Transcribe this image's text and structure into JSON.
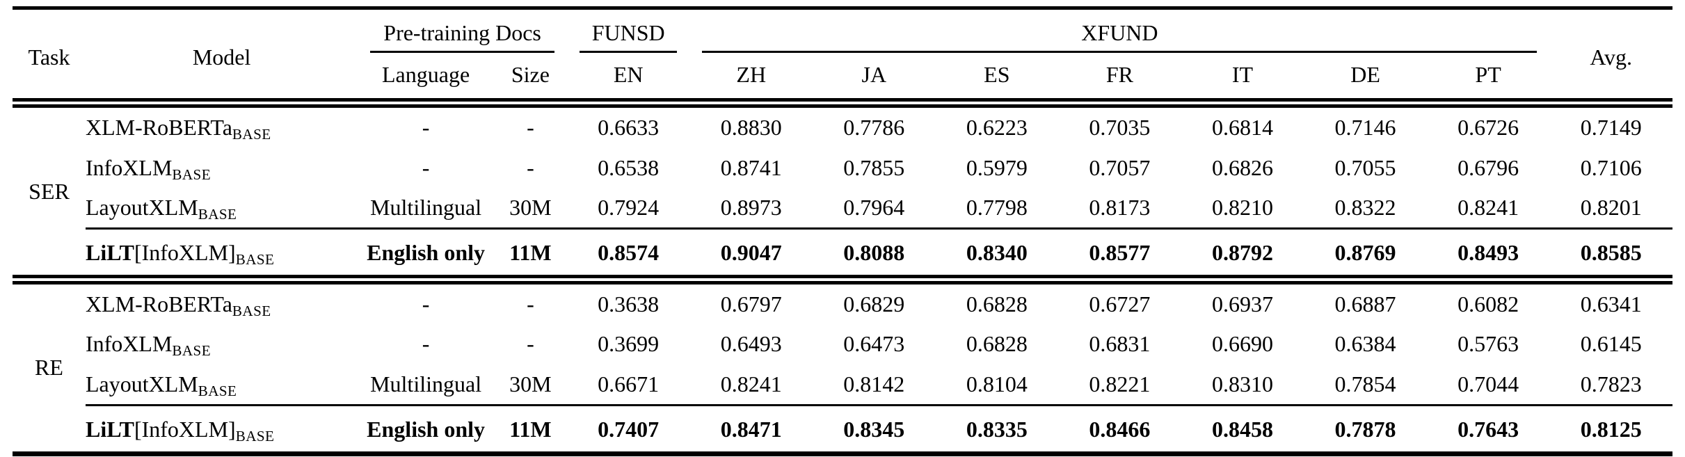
{
  "colors": {
    "text": "#000000",
    "background": "#ffffff"
  },
  "header": {
    "task": "Task",
    "model": "Model",
    "pretraining_docs": "Pre-training Docs",
    "language": "Language",
    "size": "Size",
    "funsd": "FUNSD",
    "en": "EN",
    "xfund": "XFUND",
    "zh": "ZH",
    "ja": "JA",
    "es": "ES",
    "fr": "FR",
    "it": "IT",
    "de": "DE",
    "pt": "PT",
    "avg": "Avg."
  },
  "sections": [
    {
      "task": "SER",
      "rows": [
        {
          "model": "XLM-RoBERTa",
          "model_bracket": "",
          "model_sub": "BASE",
          "language": "-",
          "size": "-",
          "values": [
            "0.6633",
            "0.8830",
            "0.7786",
            "0.6223",
            "0.7035",
            "0.6814",
            "0.7146",
            "0.6726",
            "0.7149"
          ]
        },
        {
          "model": "InfoXLM",
          "model_bracket": "",
          "model_sub": "BASE",
          "language": "-",
          "size": "-",
          "values": [
            "0.6538",
            "0.8741",
            "0.7855",
            "0.5979",
            "0.7057",
            "0.6826",
            "0.7055",
            "0.6796",
            "0.7106"
          ]
        },
        {
          "model": "LayoutXLM",
          "model_bracket": "",
          "model_sub": "BASE",
          "language": "Multilingual",
          "size": "30M",
          "values": [
            "0.7924",
            "0.8973",
            "0.7964",
            "0.7798",
            "0.8173",
            "0.8210",
            "0.8322",
            "0.8241",
            "0.8201"
          ]
        },
        {
          "model": "LiLT",
          "model_bracket": "[InfoXLM]",
          "model_sub": "BASE",
          "language": "English only",
          "size": "11M",
          "values": [
            "0.8574",
            "0.9047",
            "0.8088",
            "0.8340",
            "0.8577",
            "0.8792",
            "0.8769",
            "0.8493",
            "0.8585"
          ]
        }
      ]
    },
    {
      "task": "RE",
      "rows": [
        {
          "model": "XLM-RoBERTa",
          "model_bracket": "",
          "model_sub": "BASE",
          "language": "-",
          "size": "-",
          "values": [
            "0.3638",
            "0.6797",
            "0.6829",
            "0.6828",
            "0.6727",
            "0.6937",
            "0.6887",
            "0.6082",
            "0.6341"
          ]
        },
        {
          "model": "InfoXLM",
          "model_bracket": "",
          "model_sub": "BASE",
          "language": "-",
          "size": "-",
          "values": [
            "0.3699",
            "0.6493",
            "0.6473",
            "0.6828",
            "0.6831",
            "0.6690",
            "0.6384",
            "0.5763",
            "0.6145"
          ]
        },
        {
          "model": "LayoutXLM",
          "model_bracket": "",
          "model_sub": "BASE",
          "language": "Multilingual",
          "size": "30M",
          "values": [
            "0.6671",
            "0.8241",
            "0.8142",
            "0.8104",
            "0.8221",
            "0.8310",
            "0.7854",
            "0.7044",
            "0.7823"
          ]
        },
        {
          "model": "LiLT",
          "model_bracket": "[InfoXLM]",
          "model_sub": "BASE",
          "language": "English only",
          "size": "11M",
          "values": [
            "0.7407",
            "0.8471",
            "0.8345",
            "0.8335",
            "0.8466",
            "0.8458",
            "0.7878",
            "0.7643",
            "0.8125"
          ]
        }
      ]
    }
  ]
}
